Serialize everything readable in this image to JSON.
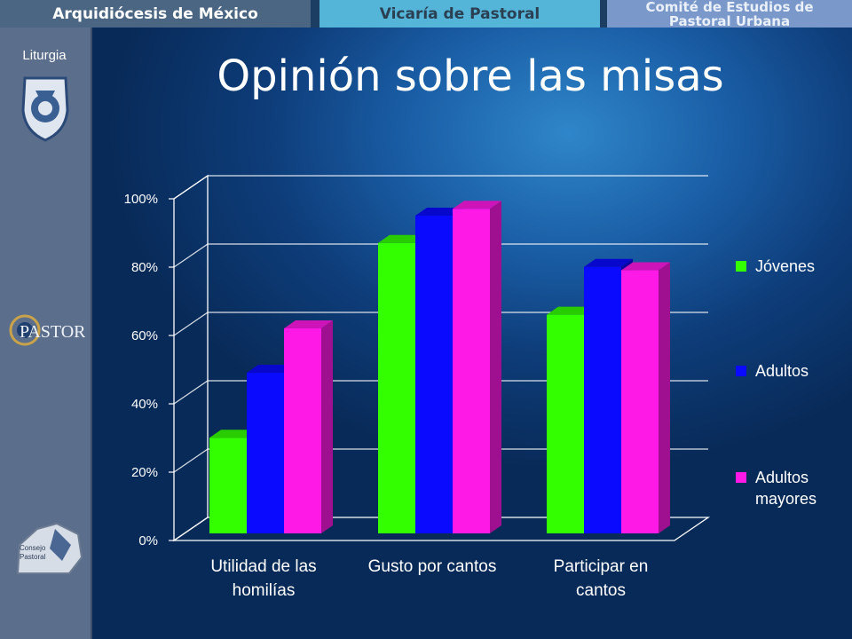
{
  "header": {
    "tabs": [
      {
        "label": "Arquidiócesis de México"
      },
      {
        "label": "Vicaría de Pastoral"
      },
      {
        "label_line1": "Comité de Estudios de",
        "label_line2": "Pastoral Urbana"
      }
    ]
  },
  "sidebar": {
    "title": "Liturgia",
    "logos": [
      "archdiocese-seal",
      "pastoral-logo",
      "consejo-pastoral-logo"
    ]
  },
  "colors": {
    "jovenes": "#33ff00",
    "adultos": "#0a0aff",
    "mayores": "#ff19e6"
  },
  "chart_data": {
    "type": "bar",
    "title": "Opinión sobre las misas",
    "categories": [
      "Utilidad de las homilías",
      "Gusto por cantos",
      "Participar en cantos"
    ],
    "category_lines": [
      [
        "Utilidad de las",
        "homilías"
      ],
      [
        "Gusto por cantos"
      ],
      [
        "Participar en",
        "cantos"
      ]
    ],
    "series": [
      {
        "name": "Jóvenes",
        "name_lines": [
          "Jóvenes"
        ],
        "values": [
          28,
          85,
          64
        ]
      },
      {
        "name": "Adultos",
        "name_lines": [
          "Adultos"
        ],
        "values": [
          47,
          93,
          78
        ]
      },
      {
        "name": "Adultos mayores",
        "name_lines": [
          "Adultos",
          "mayores"
        ],
        "values": [
          60,
          95,
          77
        ]
      }
    ],
    "ylim": [
      0,
      100
    ],
    "yticks": [
      "0%",
      "20%",
      "40%",
      "60%",
      "80%",
      "100%"
    ],
    "grid": true,
    "legend": "right",
    "style": "3d-column"
  }
}
